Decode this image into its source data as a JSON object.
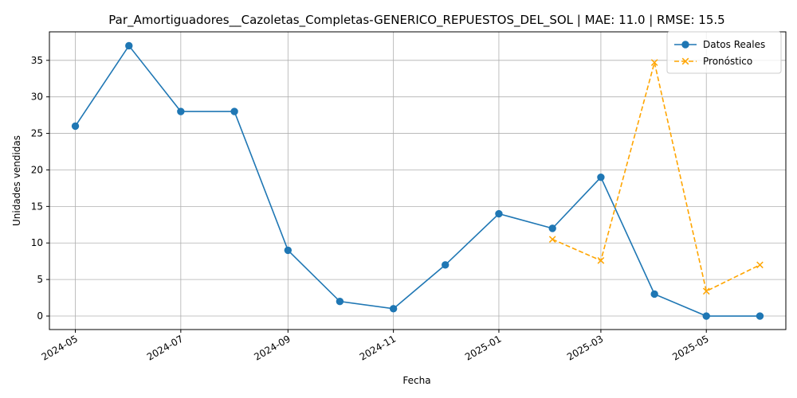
{
  "chart_data": {
    "type": "line",
    "title": "Par_Amortiguadores__Cazoletas_Completas-GENERICO_REPUESTOS_DEL_SOL | MAE: 11.0 | RMSE: 15.5",
    "xlabel": "Fecha",
    "ylabel": "Unidades vendidas",
    "xlim": [
      "2024-04-16",
      "2025-06-16"
    ],
    "ylim": [
      -1.85,
      38.9
    ],
    "grid": true,
    "legend_position": "top-right",
    "x_ticks": [
      {
        "date": "2024-05-01",
        "label": "2024-05"
      },
      {
        "date": "2024-07-01",
        "label": "2024-07"
      },
      {
        "date": "2024-09-01",
        "label": "2024-09"
      },
      {
        "date": "2024-11-01",
        "label": "2024-11"
      },
      {
        "date": "2025-01-01",
        "label": "2025-01"
      },
      {
        "date": "2025-03-01",
        "label": "2025-03"
      },
      {
        "date": "2025-05-01",
        "label": "2025-05"
      }
    ],
    "y_ticks": [
      0,
      5,
      10,
      15,
      20,
      25,
      30,
      35
    ],
    "series": [
      {
        "name": "Datos Reales",
        "color": "#1f77b4",
        "marker": "circle",
        "linestyle": "solid",
        "points": [
          {
            "x": "2024-05-01",
            "y": 26
          },
          {
            "x": "2024-06-01",
            "y": 37
          },
          {
            "x": "2024-07-01",
            "y": 28
          },
          {
            "x": "2024-08-01",
            "y": 28
          },
          {
            "x": "2024-09-01",
            "y": 9
          },
          {
            "x": "2024-10-01",
            "y": 2
          },
          {
            "x": "2024-11-01",
            "y": 1
          },
          {
            "x": "2024-12-01",
            "y": 7
          },
          {
            "x": "2025-01-01",
            "y": 14
          },
          {
            "x": "2025-02-01",
            "y": 12
          },
          {
            "x": "2025-03-01",
            "y": 19
          },
          {
            "x": "2025-04-01",
            "y": 3
          },
          {
            "x": "2025-05-01",
            "y": 0
          },
          {
            "x": "2025-06-01",
            "y": 0
          }
        ]
      },
      {
        "name": "Pronóstico",
        "color": "#ffa500",
        "marker": "x",
        "linestyle": "dashed",
        "points": [
          {
            "x": "2025-02-01",
            "y": 10.5
          },
          {
            "x": "2025-03-01",
            "y": 7.6
          },
          {
            "x": "2025-04-01",
            "y": 34.7
          },
          {
            "x": "2025-05-01",
            "y": 3.4
          },
          {
            "x": "2025-06-01",
            "y": 7.0
          }
        ]
      }
    ]
  }
}
